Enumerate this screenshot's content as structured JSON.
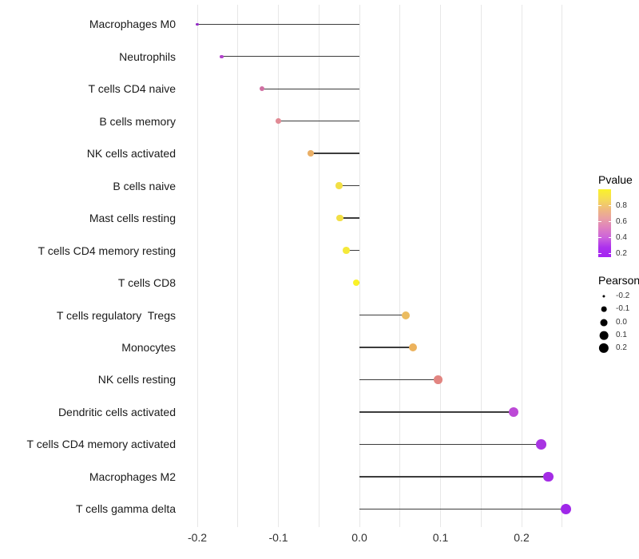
{
  "chart_data": {
    "type": "scatter",
    "variant": "lollipop",
    "orientation": "horizontal",
    "title": "",
    "xlabel": "",
    "ylabel": "",
    "categories": [
      "Macrophages M0",
      "Neutrophils",
      "T cells CD4 naive",
      "B cells memory",
      "NK cells activated",
      "B cells naive",
      "Mast cells resting",
      "T cells CD4 memory resting",
      "T cells CD8",
      "T cells regulatory  Tregs",
      "Monocytes",
      "NK cells resting",
      "Dendritic cells activated",
      "T cells CD4 memory activated",
      "Macrophages M2",
      "T cells gamma delta"
    ],
    "series": [
      {
        "name": "Pearson",
        "values": [
          -0.2,
          -0.17,
          -0.12,
          -0.1,
          -0.06,
          -0.025,
          -0.024,
          -0.016,
          -0.004,
          0.057,
          0.066,
          0.097,
          0.19,
          0.224,
          0.233,
          0.255
        ]
      }
    ],
    "point_colors": [
      "#942DC6",
      "#B243CB",
      "#D06FA2",
      "#E18A94",
      "#EAAF66",
      "#F2DF45",
      "#F2DF45",
      "#F5E93A",
      "#FAF228",
      "#EBBC60",
      "#ECB25C",
      "#E28581",
      "#BC49D6",
      "#A835E2",
      "#A42CE5",
      "#9F27E9"
    ],
    "stem_color": "#3c3c3c",
    "stem_origin": 0.0,
    "x_tick_labels": [
      "-0.2",
      "-0.1",
      "0.0",
      "0.1",
      "0.2"
    ],
    "x_tick_values": [
      -0.2,
      -0.1,
      0.0,
      0.1,
      0.2
    ],
    "x_gridline_values": [
      -0.2,
      -0.15,
      -0.1,
      -0.05,
      0.0,
      0.05,
      0.1,
      0.15,
      0.2,
      0.25
    ],
    "xlim": [
      -0.225,
      0.28
    ],
    "grid": {
      "show": true,
      "color": "#e7e7e7"
    },
    "legend_position": "right"
  },
  "legends": {
    "pvalue": {
      "title": "Pvalue",
      "tick_labels": [
        "0.8",
        "0.6",
        "0.4",
        "0.2"
      ],
      "gradient_top_to_bottom": [
        "#FAF32A",
        "#F5DC55",
        "#EFBB7C",
        "#E9A0A3",
        "#DE7FC0",
        "#CC63DC",
        "#AC31ED",
        "#A524F2"
      ]
    },
    "pearson": {
      "title": "Pearson",
      "items": [
        {
          "label": "-0.2",
          "value": -0.2
        },
        {
          "label": "-0.1",
          "value": -0.1
        },
        {
          "label": "0.0",
          "value": 0.0
        },
        {
          "label": "0.1",
          "value": 0.1
        },
        {
          "label": "0.2",
          "value": 0.2
        }
      ],
      "dot_color": "#000000"
    }
  }
}
